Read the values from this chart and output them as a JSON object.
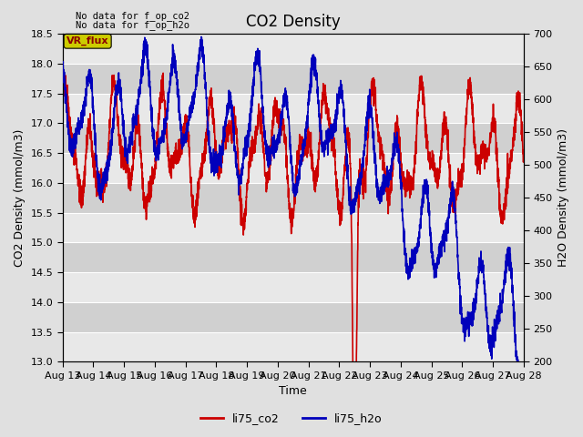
{
  "title": "CO2 Density",
  "xlabel": "Time",
  "ylabel_left": "CO2 Density (mmol/m3)",
  "ylabel_right": "H2O Density (mmol/m3)",
  "top_note1": "No data for f_op_co2",
  "top_note2": "No data for f_op_h2o",
  "vr_flux_label": "VR_flux",
  "ylim_left": [
    13.0,
    18.5
  ],
  "ylim_right": [
    200,
    700
  ],
  "yticks_left": [
    13.0,
    13.5,
    14.0,
    14.5,
    15.0,
    15.5,
    16.0,
    16.5,
    17.0,
    17.5,
    18.0,
    18.5
  ],
  "yticks_right": [
    200,
    250,
    300,
    350,
    400,
    450,
    500,
    550,
    600,
    650,
    700
  ],
  "xtick_labels": [
    "Aug 13",
    "Aug 14",
    "Aug 15",
    "Aug 16",
    "Aug 17",
    "Aug 18",
    "Aug 19",
    "Aug 20",
    "Aug 21",
    "Aug 22",
    "Aug 23",
    "Aug 24",
    "Aug 25",
    "Aug 26",
    "Aug 27",
    "Aug 28"
  ],
  "color_co2": "#cc0000",
  "color_h2o": "#0000bb",
  "legend_labels": [
    "li75_co2",
    "li75_h2o"
  ],
  "bg_color": "#e0e0e0",
  "band_color_dark": "#d0d0d0",
  "band_color_light": "#e8e8e8",
  "grid_color": "#ffffff",
  "vr_flux_bg": "#cccc00",
  "title_fontsize": 12,
  "label_fontsize": 9,
  "tick_fontsize": 8
}
